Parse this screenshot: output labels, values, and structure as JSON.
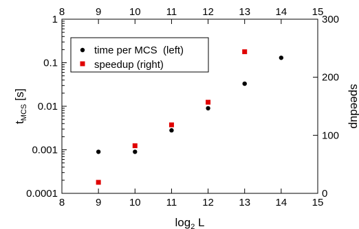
{
  "chart_data": {
    "type": "scatter",
    "xlabel": {
      "main": "log",
      "sub": "2",
      "rest": " L"
    },
    "ylabel_left": {
      "main": "t",
      "sub": "MCS",
      "rest": " [s]"
    },
    "ylabel_right": "speedup",
    "xlim": [
      8,
      15
    ],
    "ylim_left": [
      0.0001,
      1
    ],
    "ylim_right": [
      0,
      300
    ],
    "y_left_scale": "log",
    "grid": false,
    "legend_position": "top-left",
    "x_ticks": [
      8,
      9,
      10,
      11,
      12,
      13,
      14,
      15
    ],
    "x_tick_labels": [
      "8",
      "9",
      "10",
      "11",
      "12",
      "13",
      "14",
      "15"
    ],
    "y_left_ticks": [
      0.0001,
      0.001,
      0.01,
      0.1,
      1
    ],
    "y_left_tick_labels": [
      "0.0001",
      "0.001",
      "0.01",
      "0.1",
      "1"
    ],
    "y_right_ticks": [
      0,
      100,
      200,
      300
    ],
    "y_right_tick_labels": [
      "0",
      "100",
      "200",
      "300"
    ],
    "series": [
      {
        "name": "time per MCS  (left)",
        "axis": "left",
        "marker": "circle",
        "color": "#000000",
        "x": [
          9,
          10,
          11,
          12,
          13,
          14
        ],
        "y": [
          0.0009,
          0.0009,
          0.0028,
          0.009,
          0.033,
          0.13
        ]
      },
      {
        "name": "speedup (right)",
        "axis": "right",
        "marker": "square",
        "color": "#e00000",
        "x": [
          9,
          10,
          11,
          12,
          13
        ],
        "y": [
          19,
          82,
          118,
          157,
          244
        ]
      }
    ]
  }
}
